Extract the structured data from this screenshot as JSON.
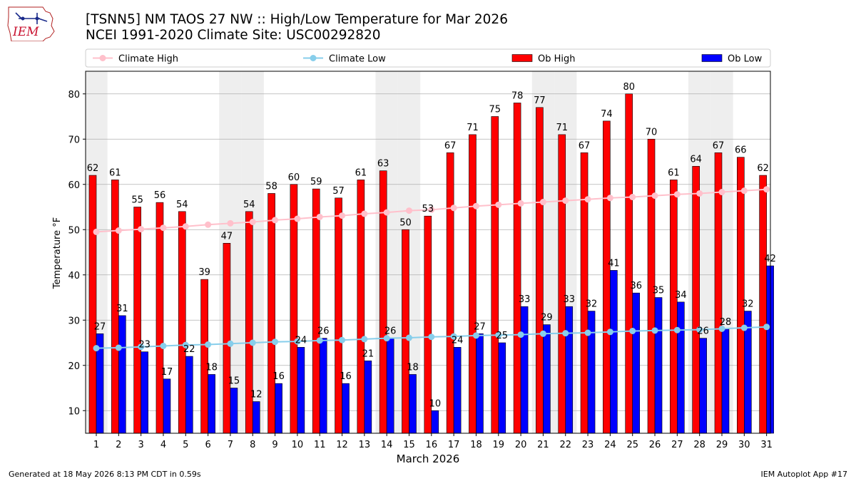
{
  "title_line1": "[TSNN5] NM TAOS 27 NW :: High/Low Temperature for Mar 2026",
  "title_line2": "NCEI 1991-2020 Climate Site: USC00292820",
  "logo_text": "IEM",
  "footer_left": "Generated at 18 May 2026 8:13 PM CDT in 0.59s",
  "footer_right": "IEM Autoplot App #17",
  "chart_data": {
    "type": "bar",
    "xlabel": "March 2026",
    "ylabel": "Temperature °F",
    "ylim": [
      5,
      85
    ],
    "yticks": [
      10,
      20,
      30,
      40,
      50,
      60,
      70,
      80
    ],
    "grid": true,
    "legend_position": "top",
    "weekend_shading_days": [
      1,
      7,
      8,
      14,
      15,
      21,
      22,
      28,
      29
    ],
    "categories": [
      "1",
      "2",
      "3",
      "4",
      "5",
      "6",
      "7",
      "8",
      "9",
      "10",
      "11",
      "12",
      "13",
      "14",
      "15",
      "16",
      "17",
      "18",
      "19",
      "20",
      "21",
      "22",
      "23",
      "24",
      "25",
      "26",
      "27",
      "28",
      "29",
      "30",
      "31"
    ],
    "series": [
      {
        "name": "Climate High",
        "kind": "line",
        "color": "#ffc0cb",
        "values": [
          49.5,
          49.8,
          50.1,
          50.4,
          50.7,
          51.1,
          51.4,
          51.7,
          52.1,
          52.4,
          52.8,
          53.1,
          53.5,
          53.8,
          54.2,
          54.4,
          54.8,
          55.2,
          55.5,
          55.8,
          56.1,
          56.4,
          56.7,
          57.0,
          57.2,
          57.5,
          57.8,
          58.0,
          58.3,
          58.6,
          58.9
        ]
      },
      {
        "name": "Climate Low",
        "kind": "line",
        "color": "#87ceeb",
        "values": [
          23.8,
          23.9,
          24.1,
          24.3,
          24.5,
          24.6,
          24.8,
          25.0,
          25.2,
          25.3,
          25.5,
          25.6,
          25.8,
          26.0,
          26.1,
          26.3,
          26.4,
          26.6,
          26.7,
          26.8,
          27.0,
          27.1,
          27.2,
          27.4,
          27.6,
          27.7,
          27.8,
          27.9,
          28.1,
          28.3,
          28.5
        ]
      },
      {
        "name": "Ob High",
        "kind": "bar",
        "color": "#ff0000",
        "values": [
          62,
          61,
          55,
          56,
          54,
          39,
          47,
          54,
          58,
          60,
          59,
          57,
          61,
          63,
          50,
          53,
          67,
          71,
          75,
          78,
          77,
          71,
          67,
          74,
          80,
          70,
          61,
          64,
          67,
          66,
          62
        ]
      },
      {
        "name": "Ob Low",
        "kind": "bar",
        "color": "#0000ff",
        "values": [
          27,
          31,
          23,
          17,
          22,
          18,
          15,
          12,
          16,
          24,
          26,
          16,
          21,
          26,
          18,
          10,
          24,
          27,
          25,
          33,
          29,
          33,
          32,
          41,
          36,
          35,
          34,
          26,
          28,
          32,
          42
        ]
      }
    ]
  }
}
